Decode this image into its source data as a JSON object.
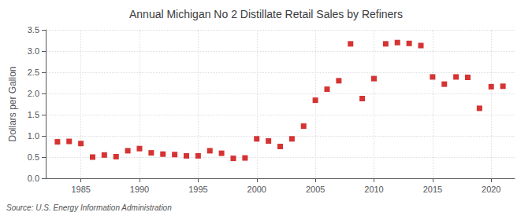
{
  "chart_data": {
    "type": "scatter",
    "title": "Annual Michigan No 2 Distillate Retail Sales by Refiners",
    "ylabel": "Dollars per Gallon",
    "annotation": "Source: U.S. Energy Information Administration",
    "x": [
      1983,
      1984,
      1985,
      1986,
      1987,
      1988,
      1989,
      1990,
      1991,
      1992,
      1993,
      1994,
      1995,
      1996,
      1997,
      1998,
      1999,
      2000,
      2001,
      2002,
      2003,
      2004,
      2005,
      2006,
      2007,
      2008,
      2009,
      2010,
      2011,
      2012,
      2013,
      2014,
      2015,
      2016,
      2017,
      2018,
      2019,
      2020,
      2021
    ],
    "values": [
      0.86,
      0.87,
      0.82,
      0.5,
      0.55,
      0.51,
      0.65,
      0.7,
      0.6,
      0.57,
      0.56,
      0.53,
      0.53,
      0.65,
      0.59,
      0.47,
      0.48,
      0.93,
      0.88,
      0.75,
      0.93,
      1.23,
      1.84,
      2.1,
      2.3,
      3.17,
      1.88,
      2.35,
      3.17,
      3.2,
      3.18,
      3.13,
      2.39,
      2.22,
      2.39,
      2.38,
      1.65,
      2.16,
      2.17
    ],
    "color": "#cc0000",
    "marker": "square",
    "xlim": [
      1982,
      2022
    ],
    "xticks": [
      1985,
      1990,
      1995,
      2000,
      2005,
      2010,
      2015,
      2020
    ],
    "ylim": [
      0.0,
      3.5
    ],
    "yticks": [
      {
        "value": 0,
        "label": "0.0"
      },
      0.5,
      {
        "value": 1,
        "label": "1.0"
      },
      1.5,
      {
        "value": 2,
        "label": "2.0"
      },
      2.5,
      {
        "value": 3,
        "label": "3.0"
      },
      3.5
    ],
    "grid": true
  }
}
